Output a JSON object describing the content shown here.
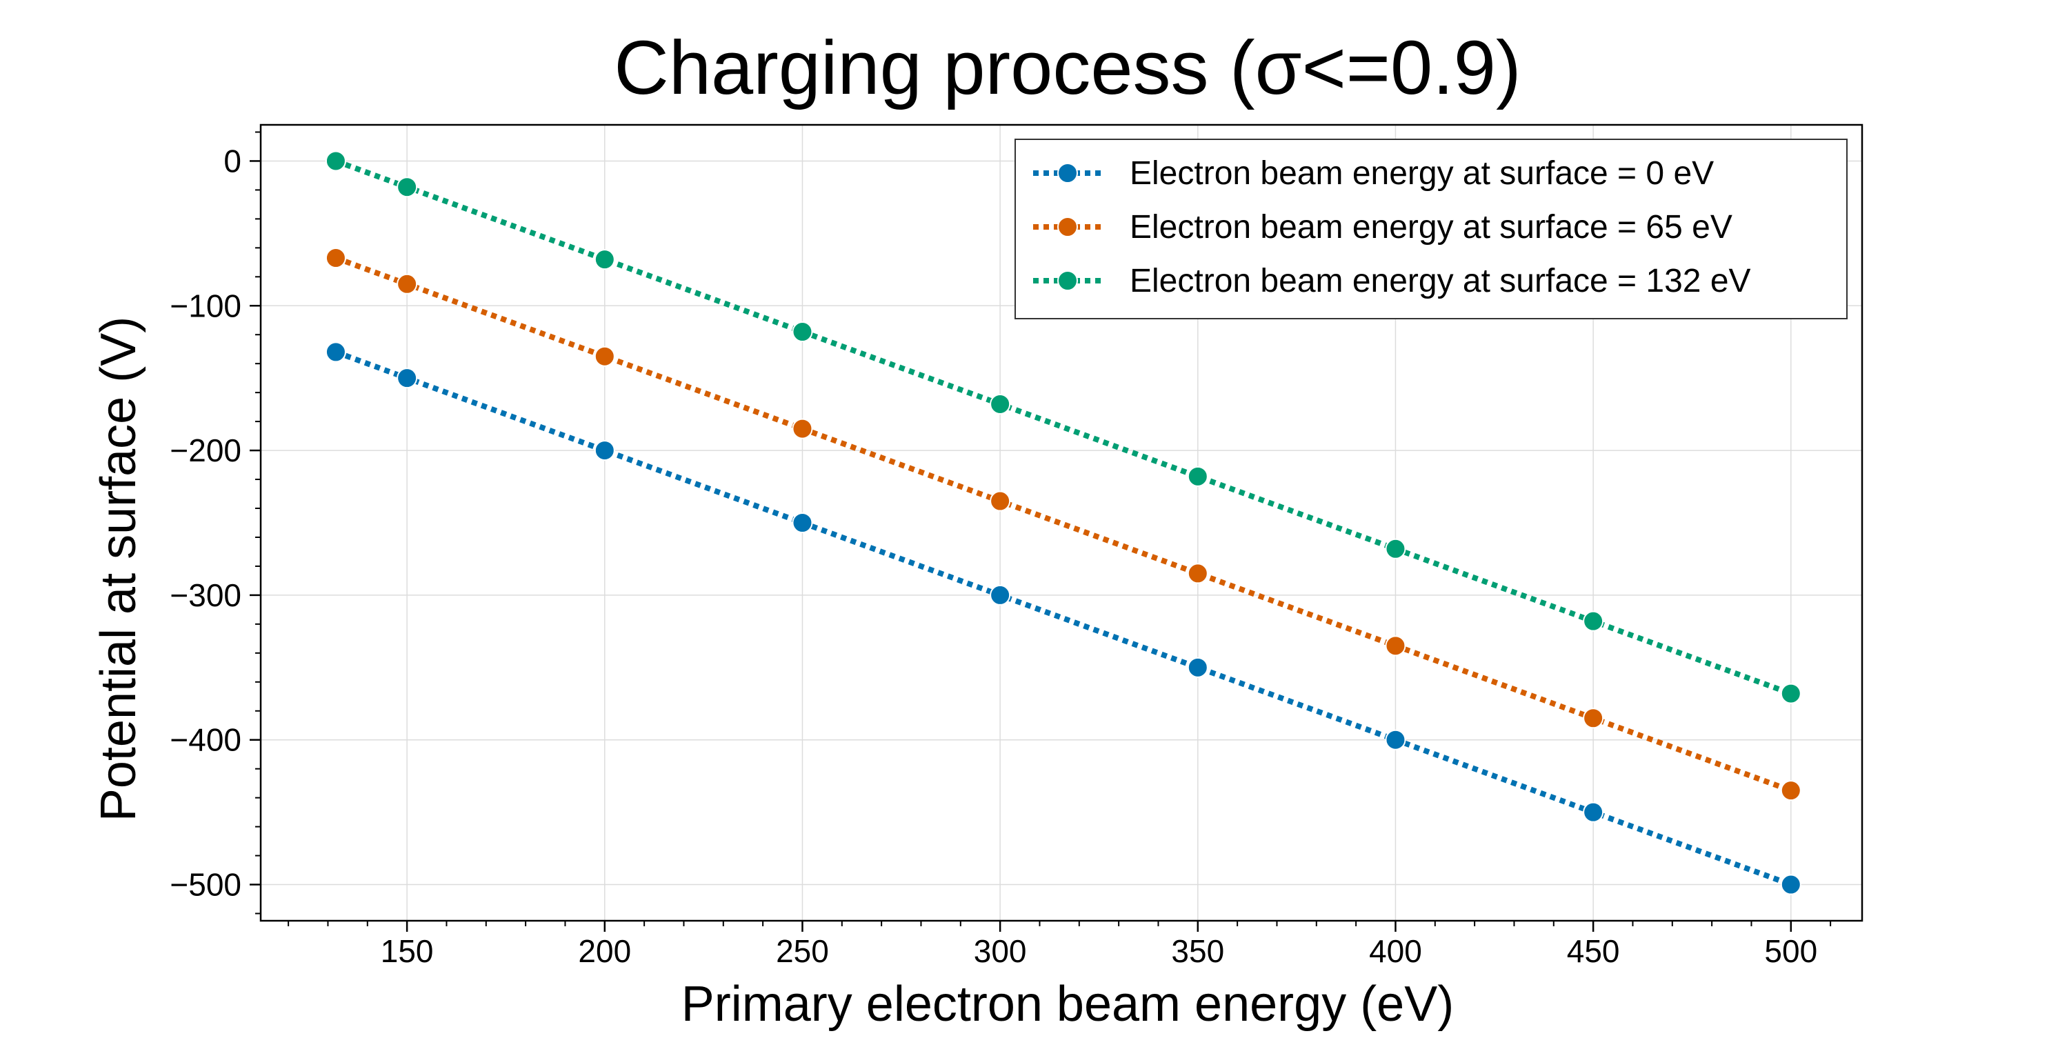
{
  "chart_data": {
    "type": "line",
    "title": "Charging process (σ<=0.9)",
    "xlabel": "Primary electron beam energy (eV)",
    "ylabel": "Potential at surface (V)",
    "xlim": [
      113,
      518
    ],
    "ylim": [
      -525,
      25
    ],
    "xticks": [
      150,
      200,
      250,
      300,
      350,
      400,
      450,
      500
    ],
    "xtick_labels": [
      "150",
      "200",
      "250",
      "300",
      "350",
      "400",
      "450",
      "500"
    ],
    "yticks": [
      0,
      -100,
      -200,
      -300,
      -400,
      -500
    ],
    "ytick_labels": [
      "0",
      "−100",
      "−200",
      "−300",
      "−400",
      "−500"
    ],
    "grid": true,
    "legend_position": "top-right",
    "x": [
      132,
      150,
      200,
      250,
      300,
      350,
      400,
      450,
      500
    ],
    "series": [
      {
        "name": "Electron beam energy at surface = 0 eV",
        "color": "#0072b2",
        "x": [
          132,
          150,
          200,
          250,
          300,
          350,
          400,
          450,
          500
        ],
        "values": [
          -132,
          -150,
          -200,
          -250,
          -300,
          -350,
          -400,
          -450,
          -500
        ]
      },
      {
        "name": "Electron beam energy at surface = 65 eV",
        "color": "#d55e00",
        "x": [
          132,
          150,
          200,
          250,
          300,
          350,
          400,
          450,
          500
        ],
        "values": [
          -67,
          -85,
          -135,
          -185,
          -235,
          -285,
          -335,
          -385,
          -435
        ]
      },
      {
        "name": "Electron beam energy at surface = 132 eV",
        "color": "#009e73",
        "x": [
          132,
          150,
          200,
          250,
          300,
          350,
          400,
          450,
          500
        ],
        "values": [
          0,
          -18,
          -68,
          -118,
          -168,
          -218,
          -268,
          -318,
          -368
        ]
      }
    ]
  }
}
